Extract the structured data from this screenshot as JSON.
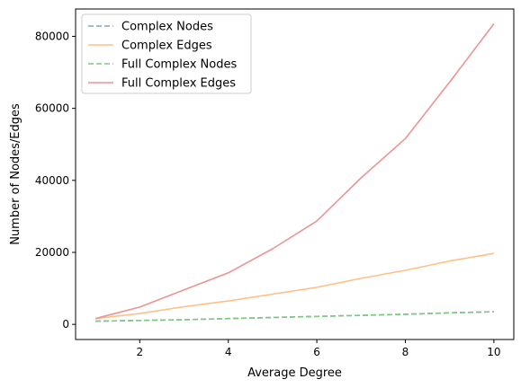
{
  "chart_data": {
    "type": "line",
    "title": "",
    "xlabel": "Average Degree",
    "ylabel": "Number of Nodes/Edges",
    "xlim": [
      0.55,
      10.45
    ],
    "ylim": [
      -4200,
      87600
    ],
    "xticks": [
      2,
      4,
      6,
      8,
      10
    ],
    "yticks": [
      0,
      20000,
      40000,
      60000,
      80000
    ],
    "grid": false,
    "legend_position": "top-left",
    "x": [
      1,
      2,
      3,
      4,
      5,
      6,
      7,
      8,
      9,
      10
    ],
    "series": [
      {
        "name": "Complex Nodes",
        "color": "#7fa6c9",
        "dashed": true,
        "values": [
          900,
          1100,
          1300,
          1600,
          1900,
          2200,
          2500,
          2800,
          3200,
          3500
        ]
      },
      {
        "name": "Complex Edges",
        "color": "#ffbf86",
        "dashed": false,
        "values": [
          1600,
          3000,
          4900,
          6500,
          8400,
          10300,
          12800,
          15000,
          17600,
          19700
        ]
      },
      {
        "name": "Full Complex Nodes",
        "color": "#7fc97f",
        "dashed": true,
        "values": [
          900,
          1100,
          1300,
          1600,
          1900,
          2200,
          2500,
          2800,
          3200,
          3500
        ]
      },
      {
        "name": "Full Complex Edges",
        "color": "#ea9593",
        "dashed": false,
        "values": [
          1600,
          4800,
          9600,
          14300,
          21000,
          28700,
          40700,
          51600,
          67300,
          83500
        ]
      }
    ]
  }
}
